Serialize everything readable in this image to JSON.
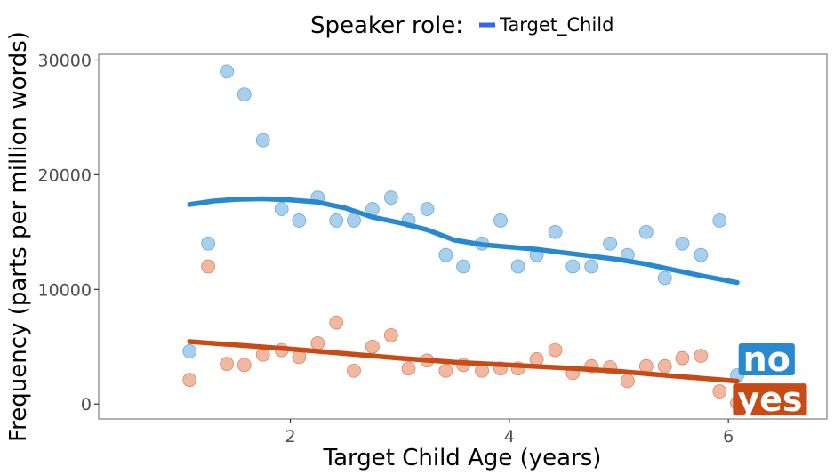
{
  "chart_data": {
    "type": "scatter",
    "legend": {
      "title": "Speaker role:",
      "label": "Target_Child",
      "placement": "top",
      "color": "#3366ee"
    },
    "xlabel": "Target Child Age (years)",
    "ylabel": "Frequency (parts per million words)",
    "xlim": [
      0.25,
      6.9
    ],
    "ylim": [
      -1300,
      30500
    ],
    "xticks": [
      2,
      4,
      6
    ],
    "yticks": [
      0,
      10000,
      20000,
      30000
    ],
    "grid": false,
    "series": [
      {
        "name": "no",
        "point_color": "#9ecae9",
        "point_edge": "#6fa9d9",
        "line_color": "#2888d0",
        "tag_color": "#2888d0",
        "tag_pos": [
          6.35,
          3900
        ],
        "points": [
          [
            1.08,
            4600
          ],
          [
            1.25,
            14000
          ],
          [
            1.42,
            29000
          ],
          [
            1.58,
            27000
          ],
          [
            1.75,
            23000
          ],
          [
            1.92,
            17000
          ],
          [
            2.08,
            16000
          ],
          [
            2.25,
            18000
          ],
          [
            2.42,
            16000
          ],
          [
            2.58,
            16000
          ],
          [
            2.75,
            17000
          ],
          [
            2.92,
            18000
          ],
          [
            3.08,
            16000
          ],
          [
            3.25,
            17000
          ],
          [
            3.42,
            13000
          ],
          [
            3.58,
            12000
          ],
          [
            3.75,
            14000
          ],
          [
            3.92,
            16000
          ],
          [
            4.08,
            12000
          ],
          [
            4.25,
            13000
          ],
          [
            4.42,
            15000
          ],
          [
            4.58,
            12000
          ],
          [
            4.75,
            12000
          ],
          [
            4.92,
            14000
          ],
          [
            5.08,
            13000
          ],
          [
            5.25,
            15000
          ],
          [
            5.42,
            11000
          ],
          [
            5.58,
            14000
          ],
          [
            5.75,
            13000
          ],
          [
            5.92,
            16000
          ],
          [
            6.08,
            2500
          ]
        ],
        "trend": [
          [
            1.08,
            17400
          ],
          [
            1.3,
            17700
          ],
          [
            1.5,
            17850
          ],
          [
            1.75,
            17900
          ],
          [
            2.0,
            17800
          ],
          [
            2.25,
            17600
          ],
          [
            2.5,
            17100
          ],
          [
            2.75,
            16300
          ],
          [
            3.0,
            15800
          ],
          [
            3.25,
            15200
          ],
          [
            3.5,
            14300
          ],
          [
            3.75,
            13900
          ],
          [
            4.0,
            13700
          ],
          [
            4.25,
            13500
          ],
          [
            4.5,
            13200
          ],
          [
            4.75,
            12900
          ],
          [
            5.0,
            12600
          ],
          [
            5.25,
            12200
          ],
          [
            5.5,
            11700
          ],
          [
            5.75,
            11200
          ],
          [
            6.08,
            10600
          ]
        ]
      },
      {
        "name": "yes",
        "point_color": "#eeb096",
        "point_edge": "#d9886a",
        "line_color": "#c84a14",
        "tag_color": "#c84a14",
        "tag_pos": [
          6.38,
          400
        ],
        "points": [
          [
            1.08,
            2100
          ],
          [
            1.25,
            12000
          ],
          [
            1.42,
            3500
          ],
          [
            1.58,
            3400
          ],
          [
            1.75,
            4300
          ],
          [
            1.92,
            4700
          ],
          [
            2.08,
            4100
          ],
          [
            2.25,
            5300
          ],
          [
            2.42,
            7100
          ],
          [
            2.58,
            2900
          ],
          [
            2.75,
            5000
          ],
          [
            2.92,
            6000
          ],
          [
            3.08,
            3100
          ],
          [
            3.25,
            3800
          ],
          [
            3.42,
            2900
          ],
          [
            3.58,
            3400
          ],
          [
            3.75,
            2900
          ],
          [
            3.92,
            3100
          ],
          [
            4.08,
            3100
          ],
          [
            4.25,
            3900
          ],
          [
            4.42,
            4700
          ],
          [
            4.58,
            2700
          ],
          [
            4.75,
            3300
          ],
          [
            4.92,
            3200
          ],
          [
            5.08,
            2000
          ],
          [
            5.25,
            3300
          ],
          [
            5.42,
            3300
          ],
          [
            5.58,
            4000
          ],
          [
            5.75,
            4200
          ],
          [
            5.92,
            1100
          ],
          [
            6.08,
            100
          ]
        ],
        "trend": [
          [
            1.08,
            5450
          ],
          [
            1.5,
            5150
          ],
          [
            2.0,
            4800
          ],
          [
            2.5,
            4400
          ],
          [
            3.0,
            4000
          ],
          [
            3.5,
            3650
          ],
          [
            4.0,
            3400
          ],
          [
            4.5,
            3150
          ],
          [
            5.0,
            2850
          ],
          [
            5.5,
            2450
          ],
          [
            6.08,
            2000
          ]
        ]
      }
    ]
  }
}
